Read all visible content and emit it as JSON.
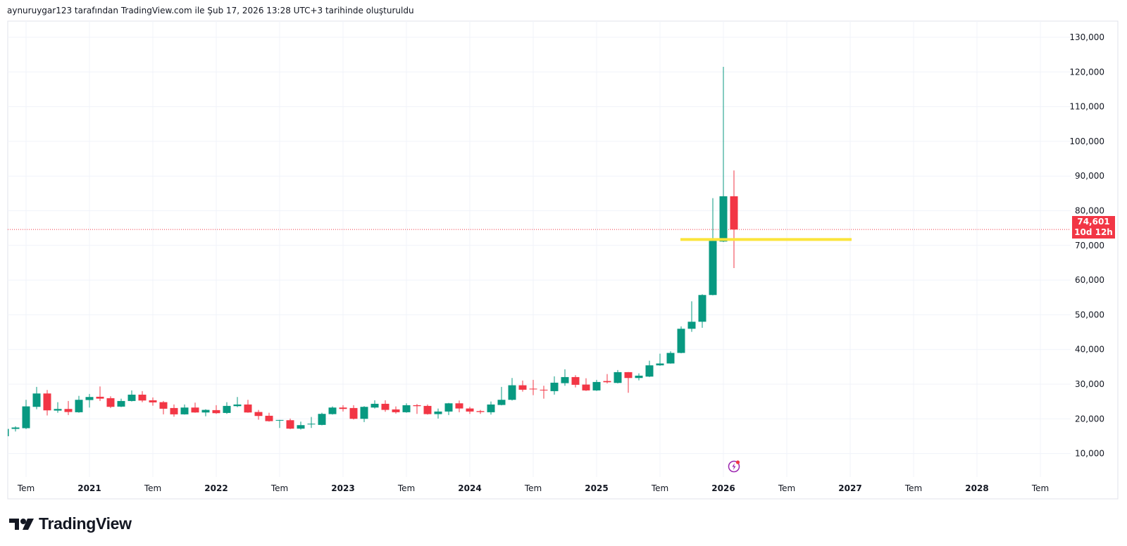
{
  "header": {
    "caption": "aynuruygar123 tarafından TradingView.com ile Şub 17, 2026 13:28 UTC+3 tarihinde oluşturuldu"
  },
  "brand": {
    "name": "TradingView"
  },
  "price_label": {
    "price": "74,601",
    "countdown": "10d 12h"
  },
  "colors": {
    "up": "#089981",
    "down": "#F23645",
    "hline": "#FBE43A",
    "grid": "#F0F3FA"
  },
  "chart_data": {
    "type": "candlestick",
    "interval": "1M",
    "ylim": [
      0,
      135000
    ],
    "grid": true,
    "y_ticks": [
      10000,
      20000,
      30000,
      40000,
      50000,
      60000,
      70000,
      80000,
      90000,
      100000,
      110000,
      120000,
      130000
    ],
    "y_tick_labels": [
      "10,000",
      "20,000",
      "30,000",
      "40,000",
      "50,000",
      "60,000",
      "70,000",
      "80,000",
      "90,000",
      "100,000",
      "110,000",
      "120,000",
      "130,000"
    ],
    "x_ticks": [
      {
        "date": "2020-07",
        "label": "Tem",
        "major": false
      },
      {
        "date": "2021-01",
        "label": "2021",
        "major": true
      },
      {
        "date": "2021-07",
        "label": "Tem",
        "major": false
      },
      {
        "date": "2022-01",
        "label": "2022",
        "major": true
      },
      {
        "date": "2022-07",
        "label": "Tem",
        "major": false
      },
      {
        "date": "2023-01",
        "label": "2023",
        "major": true
      },
      {
        "date": "2023-07",
        "label": "Tem",
        "major": false
      },
      {
        "date": "2024-01",
        "label": "2024",
        "major": true
      },
      {
        "date": "2024-07",
        "label": "Tem",
        "major": false
      },
      {
        "date": "2025-01",
        "label": "2025",
        "major": true
      },
      {
        "date": "2025-07",
        "label": "Tem",
        "major": false
      },
      {
        "date": "2026-01",
        "label": "2026",
        "major": true
      },
      {
        "date": "2026-07",
        "label": "Tem",
        "major": false
      },
      {
        "date": "2027-01",
        "label": "2027",
        "major": true
      },
      {
        "date": "2027-07",
        "label": "Tem",
        "major": false
      },
      {
        "date": "2028-01",
        "label": "2028",
        "major": true
      },
      {
        "date": "2028-07",
        "label": "Tem",
        "major": false
      }
    ],
    "last_price": 74601,
    "horizontal_line": {
      "price": 71700,
      "from": "2025-09",
      "to": "2027-01"
    },
    "event_marker": {
      "date": "2026-02"
    },
    "candles": [
      [
        "2020-05",
        15000,
        17500,
        14200,
        17100
      ],
      [
        "2020-06",
        17108,
        17852,
        16364,
        17513
      ],
      [
        "2020-07",
        17310,
        25490,
        17040,
        23597
      ],
      [
        "2020-08",
        23462,
        29208,
        22786,
        27315
      ],
      [
        "2020-09",
        27315,
        28329,
        20961,
        22448
      ],
      [
        "2020-10",
        22380,
        24814,
        21772,
        22854
      ],
      [
        "2020-11",
        22854,
        25152,
        21096,
        21975
      ],
      [
        "2020-12",
        21907,
        26639,
        21772,
        25490
      ],
      [
        "2021-01",
        25422,
        27180,
        23259,
        26301
      ],
      [
        "2021-02",
        26369,
        29343,
        25152,
        25828
      ],
      [
        "2021-03",
        25963,
        26504,
        23124,
        23462
      ],
      [
        "2021-04",
        23530,
        25828,
        23394,
        25152
      ],
      [
        "2021-05",
        25152,
        28194,
        25017,
        26977
      ],
      [
        "2021-06",
        26977,
        27991,
        24814,
        25287
      ],
      [
        "2021-07",
        25355,
        26166,
        23800,
        24747
      ],
      [
        "2021-08",
        24814,
        25152,
        21299,
        22921
      ],
      [
        "2021-09",
        23124,
        24138,
        20623,
        21299
      ],
      [
        "2021-10",
        21299,
        24138,
        21231,
        23259
      ],
      [
        "2021-11",
        23259,
        24679,
        21772,
        21839
      ],
      [
        "2021-12",
        21839,
        22786,
        20758,
        22583
      ],
      [
        "2022-01",
        22516,
        23935,
        21434,
        21637
      ],
      [
        "2022-02",
        21704,
        24814,
        21434,
        23732
      ],
      [
        "2022-03",
        23665,
        26301,
        23394,
        24138
      ],
      [
        "2022-04",
        24138,
        25490,
        21772,
        21839
      ],
      [
        "2022-05",
        21975,
        22583,
        19744,
        20826
      ],
      [
        "2022-06",
        20894,
        21772,
        19203,
        19338
      ],
      [
        "2022-07",
        19541,
        19700,
        17378,
        19676
      ],
      [
        "2022-08",
        19608,
        20082,
        17040,
        17175
      ],
      [
        "2022-09",
        17175,
        19203,
        16905,
        18189
      ],
      [
        "2022-10",
        18392,
        20555,
        17378,
        18595
      ],
      [
        "2022-11",
        18257,
        21772,
        18122,
        21434
      ],
      [
        "2022-12",
        21367,
        23597,
        21231,
        23259
      ],
      [
        "2023-01",
        23259,
        23935,
        22110,
        22854
      ],
      [
        "2023-02",
        23124,
        23935,
        19811,
        20014
      ],
      [
        "2023-03",
        20014,
        23665,
        19068,
        23462
      ],
      [
        "2023-04",
        23259,
        25355,
        22989,
        24341
      ],
      [
        "2023-05",
        24341,
        25355,
        22042,
        22583
      ],
      [
        "2023-06",
        22719,
        23597,
        21502,
        21907
      ],
      [
        "2023-07",
        21907,
        24476,
        21772,
        23935
      ],
      [
        "2023-08",
        23935,
        24273,
        21434,
        23665
      ],
      [
        "2023-09",
        23732,
        24138,
        21231,
        21367
      ],
      [
        "2023-10",
        21367,
        22989,
        20082,
        22110
      ],
      [
        "2023-11",
        22110,
        24611,
        21096,
        24476
      ],
      [
        "2023-12",
        24476,
        25287,
        21907,
        22989
      ],
      [
        "2024-01",
        22989,
        23462,
        21434,
        22110
      ],
      [
        "2024-02",
        22245,
        22583,
        21434,
        21975
      ],
      [
        "2024-03",
        21907,
        25017,
        21231,
        24138
      ],
      [
        "2024-04",
        24003,
        29208,
        23900,
        25490
      ],
      [
        "2024-05",
        25490,
        31777,
        25287,
        29681
      ],
      [
        "2024-06",
        29681,
        31033,
        27856,
        28397
      ],
      [
        "2024-07",
        28700,
        31236,
        26842,
        28532
      ],
      [
        "2024-08",
        28397,
        29546,
        25828,
        28194
      ],
      [
        "2024-09",
        27991,
        32250,
        26977,
        30425
      ],
      [
        "2024-10",
        30290,
        34278,
        29546,
        32047
      ],
      [
        "2024-11",
        32047,
        32588,
        29073,
        29816
      ],
      [
        "2024-12",
        29884,
        31709,
        28059,
        28194
      ],
      [
        "2025-01",
        28194,
        31236,
        28059,
        30628
      ],
      [
        "2025-02",
        30898,
        32926,
        30222,
        30560
      ],
      [
        "2025-03",
        30357,
        34075,
        30222,
        33467
      ],
      [
        "2025-04",
        33467,
        33500,
        27518,
        31777
      ],
      [
        "2025-05",
        31777,
        33129,
        31101,
        32453
      ],
      [
        "2025-06",
        32182,
        36779,
        32047,
        35427
      ],
      [
        "2025-07",
        35427,
        38807,
        35292,
        35968
      ],
      [
        "2025-08",
        35968,
        39483,
        35900,
        39010
      ],
      [
        "2025-09",
        39010,
        46648,
        38900,
        45972
      ],
      [
        "2025-10",
        45972,
        53882,
        45093,
        47996
      ],
      [
        "2025-11",
        47996,
        55909,
        46243,
        55706
      ],
      [
        "2025-12",
        55706,
        83624,
        55600,
        71321
      ],
      [
        "2026-01",
        71120,
        121482,
        70985,
        84167
      ],
      [
        "2026-02",
        84167,
        91603,
        63480,
        74601
      ]
    ]
  }
}
